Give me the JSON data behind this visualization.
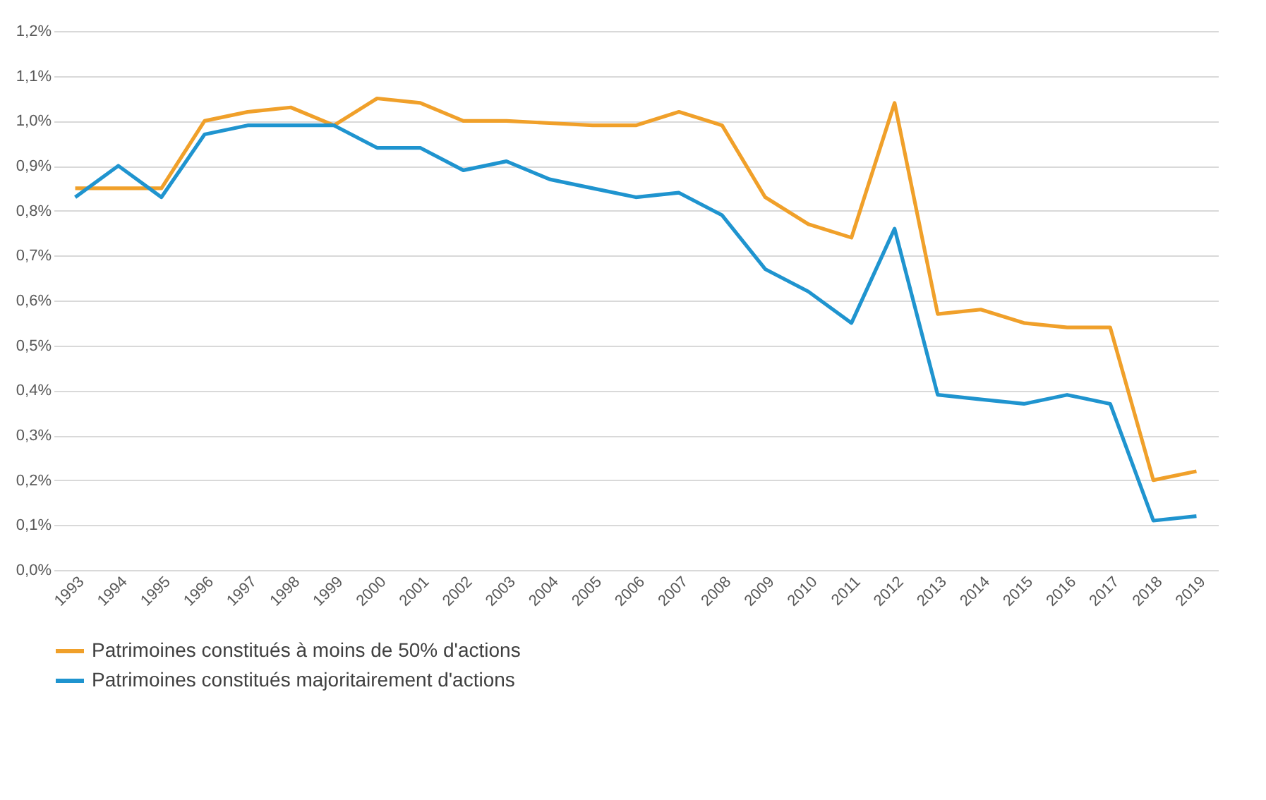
{
  "chart_data": {
    "type": "line",
    "categories": [
      "1993",
      "1994",
      "1995",
      "1996",
      "1997",
      "1998",
      "1999",
      "2000",
      "2001",
      "2002",
      "2003",
      "2004",
      "2005",
      "2006",
      "2007",
      "2008",
      "2009",
      "2010",
      "2011",
      "2012",
      "2013",
      "2014",
      "2015",
      "2016",
      "2017",
      "2018",
      "2019"
    ],
    "series": [
      {
        "name": "Patrimoines constitués à moins de 50% d'actions",
        "color": "#f0a02a",
        "values": [
          0.85,
          0.85,
          0.85,
          1.0,
          1.02,
          1.03,
          0.99,
          1.05,
          1.04,
          1.0,
          1.0,
          0.995,
          0.99,
          0.99,
          1.02,
          0.99,
          0.83,
          0.77,
          0.74,
          1.04,
          0.57,
          0.58,
          0.55,
          0.54,
          0.54,
          0.2,
          0.22
        ]
      },
      {
        "name": "Patrimoines constitués majoritairement d'actions",
        "color": "#1f94cf",
        "values": [
          0.83,
          0.9,
          0.83,
          0.97,
          0.99,
          0.99,
          0.99,
          0.94,
          0.94,
          0.89,
          0.91,
          0.87,
          0.85,
          0.83,
          0.84,
          0.79,
          0.67,
          0.62,
          0.55,
          0.76,
          0.39,
          0.38,
          0.37,
          0.39,
          0.37,
          0.11,
          0.12
        ]
      }
    ],
    "ylim": [
      0,
      1.2
    ],
    "yticks": [
      {
        "value": 0,
        "label": "0,0%"
      },
      {
        "value": 0.1,
        "label": "0,1%"
      },
      {
        "value": 0.2,
        "label": "0,2%"
      },
      {
        "value": 0.3,
        "label": "0,3%"
      },
      {
        "value": 0.4,
        "label": "0,4%"
      },
      {
        "value": 0.5,
        "label": "0,5%"
      },
      {
        "value": 0.6,
        "label": "0,6%"
      },
      {
        "value": 0.7,
        "label": "0,7%"
      },
      {
        "value": 0.8,
        "label": "0,8%"
      },
      {
        "value": 0.9,
        "label": "0,9%"
      },
      {
        "value": 1.0,
        "label": "1,0%"
      },
      {
        "value": 1.1,
        "label": "1,1%"
      },
      {
        "value": 1.2,
        "label": "1,2%"
      }
    ],
    "grid": "y",
    "legend": "bottom",
    "marker": "none",
    "line_style": "solid"
  }
}
